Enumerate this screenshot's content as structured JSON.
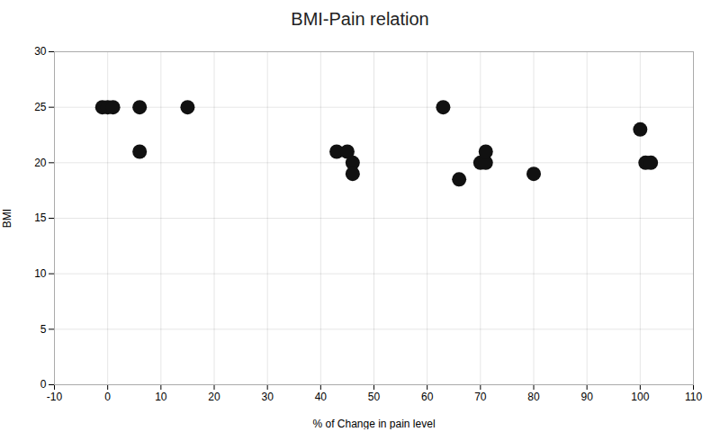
{
  "chart_data": {
    "type": "scatter",
    "title": "BMI-Pain relation",
    "xlabel": "% of Change in pain level",
    "ylabel": "BMI",
    "x": [
      -1,
      0,
      1,
      6,
      6,
      15,
      43,
      45,
      46,
      46,
      63,
      66,
      70,
      71,
      71,
      80,
      100,
      101,
      102
    ],
    "y": [
      25,
      25,
      25,
      25,
      21,
      25,
      21,
      21,
      20,
      19,
      25,
      18.5,
      20,
      20,
      21,
      19,
      23,
      20,
      20
    ],
    "color": "#111111",
    "xlim": [
      -10,
      110
    ],
    "ylim": [
      0,
      30
    ],
    "xticks": [
      -10,
      0,
      10,
      20,
      30,
      40,
      50,
      60,
      70,
      80,
      90,
      100,
      110
    ],
    "yticks": [
      0,
      5,
      10,
      15,
      20,
      25,
      30
    ],
    "grid": true
  }
}
